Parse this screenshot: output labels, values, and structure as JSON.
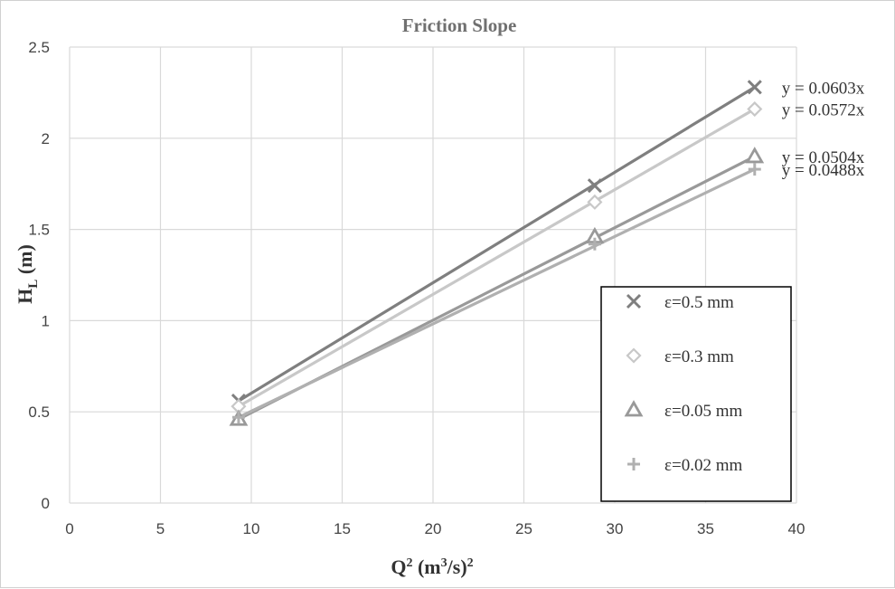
{
  "chart_data": {
    "type": "scatter",
    "title": "Friction Slope",
    "xlabel": {
      "base": "Q",
      "sup1": "2",
      "mid": " (m",
      "sup2": "3",
      "end": "/s)",
      "sup3": "2"
    },
    "ylabel": {
      "base": "H",
      "sub": "L",
      "end": " (m)"
    },
    "xlim": [
      0,
      40
    ],
    "ylim": [
      0,
      2.5
    ],
    "x_ticks": [
      "0",
      "5",
      "10",
      "15",
      "20",
      "25",
      "30",
      "35",
      "40"
    ],
    "y_ticks": [
      "0",
      "0.5",
      "1",
      "1.5",
      "2",
      "2.5"
    ],
    "grid": true,
    "legend_position": "right",
    "series": [
      {
        "name": "ε=0.5  mm",
        "marker": "x",
        "color": "#7f7f7f",
        "x": [
          9.3,
          28.9,
          37.7
        ],
        "y": [
          0.56,
          1.74,
          2.28
        ],
        "trendline": "y = 0.0603x"
      },
      {
        "name": "ε=0.3  mm",
        "marker": "diamond",
        "color": "#c8c8c8",
        "x": [
          9.3,
          28.9,
          37.7
        ],
        "y": [
          0.53,
          1.65,
          2.16
        ],
        "trendline": "y = 0.0572x"
      },
      {
        "name": "ε=0.05  mm",
        "marker": "triangle",
        "color": "#999999",
        "x": [
          9.3,
          28.9,
          37.7
        ],
        "y": [
          0.46,
          1.46,
          1.9
        ],
        "trendline": "y = 0.0504x"
      },
      {
        "name": "ε=0.02  mm",
        "marker": "plus",
        "color": "#b0b0b0",
        "x": [
          9.3,
          28.9,
          37.7
        ],
        "y": [
          0.47,
          1.42,
          1.83
        ],
        "trendline": "y = 0.0488x"
      }
    ]
  }
}
